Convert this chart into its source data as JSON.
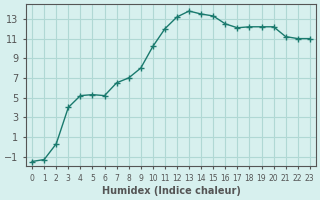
{
  "x": [
    0,
    1,
    2,
    3,
    4,
    5,
    6,
    7,
    8,
    9,
    10,
    11,
    12,
    13,
    14,
    15,
    16,
    17,
    18,
    19,
    20,
    21,
    22,
    23
  ],
  "y": [
    -1.5,
    -1.3,
    0.3,
    4.0,
    5.2,
    5.3,
    5.2,
    6.5,
    7.0,
    8.0,
    10.2,
    12.0,
    13.2,
    13.8,
    13.5,
    13.3,
    12.5,
    12.1,
    12.2,
    12.2,
    12.2,
    11.2,
    11.0,
    11.0
  ],
  "line_color": "#1a7a6e",
  "marker": "+",
  "bg_color": "#d7f0ee",
  "grid_color": "#b0d8d4",
  "axis_color": "#555555",
  "xlabel": "Humidex (Indice chaleur)",
  "yticks": [
    -1,
    1,
    3,
    5,
    7,
    9,
    11,
    13
  ],
  "xlim": [
    -0.5,
    23.5
  ],
  "ylim": [
    -2.0,
    14.5
  ]
}
